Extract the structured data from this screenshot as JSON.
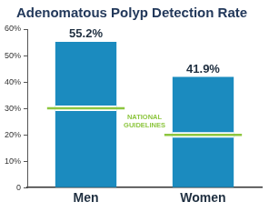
{
  "chart_data": {
    "type": "bar",
    "title": "Adenomatous Polyp Detection Rate",
    "categories": [
      "Men",
      "Women"
    ],
    "values": [
      55.2,
      41.9
    ],
    "value_labels": [
      "55.2%",
      "41.9%"
    ],
    "color": "#1b8bbf",
    "data_labels": true,
    "ylim": [
      0,
      60
    ],
    "yticks": [
      0,
      {
        "value": 10,
        "label": "10%"
      },
      {
        "value": 20,
        "label": "20%"
      },
      {
        "value": 30,
        "label": "30%"
      },
      {
        "value": 40,
        "label": "40%"
      },
      {
        "value": 50,
        "label": "50%"
      },
      {
        "value": 60,
        "label": "60%"
      }
    ],
    "grid": false,
    "guidelines": {
      "label": "NATIONAL GUIDELINES",
      "values": [
        30,
        20
      ],
      "color": "#8dc63f"
    }
  }
}
